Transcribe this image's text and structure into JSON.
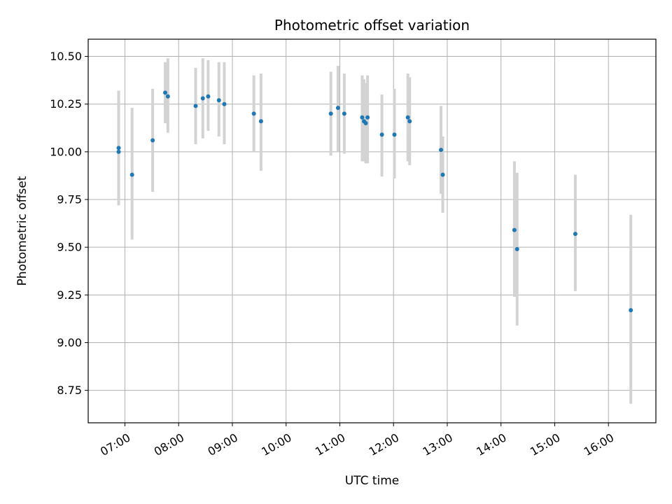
{
  "chart_data": {
    "type": "scatter",
    "title": "Photometric offset variation",
    "xlabel": "UTC time",
    "ylabel": "Photometric offset",
    "x_ticks": [
      "07:00",
      "08:00",
      "09:00",
      "10:00",
      "11:00",
      "12:00",
      "13:00",
      "14:00",
      "15:00",
      "16:00"
    ],
    "y_ticks": [
      "8.75",
      "9.00",
      "9.25",
      "9.50",
      "9.75",
      "10.00",
      "10.25",
      "10.50"
    ],
    "xlim": [
      "06:19",
      "16:53"
    ],
    "ylim": [
      8.58,
      10.59
    ],
    "grid": true,
    "legend": false,
    "colors": {
      "marker": "#1f77b4",
      "errorbar": "#d3d3d3",
      "grid": "#b0b0b0"
    },
    "points": [
      {
        "x": "06:53",
        "y": 10.02,
        "lo": 9.72,
        "hi": 10.32
      },
      {
        "x": "06:53",
        "y": 10.0,
        "lo": 9.72,
        "hi": 10.32
      },
      {
        "x": "07:08",
        "y": 9.88,
        "lo": 9.54,
        "hi": 10.23
      },
      {
        "x": "07:31",
        "y": 10.06,
        "lo": 9.79,
        "hi": 10.33
      },
      {
        "x": "07:45",
        "y": 10.31,
        "lo": 10.15,
        "hi": 10.47
      },
      {
        "x": "07:48",
        "y": 10.29,
        "lo": 10.1,
        "hi": 10.49
      },
      {
        "x": "08:19",
        "y": 10.24,
        "lo": 10.04,
        "hi": 10.44
      },
      {
        "x": "08:27",
        "y": 10.28,
        "lo": 10.07,
        "hi": 10.49
      },
      {
        "x": "08:33",
        "y": 10.29,
        "lo": 10.11,
        "hi": 10.48
      },
      {
        "x": "08:45",
        "y": 10.27,
        "lo": 10.08,
        "hi": 10.47
      },
      {
        "x": "08:51",
        "y": 10.25,
        "lo": 10.04,
        "hi": 10.47
      },
      {
        "x": "09:24",
        "y": 10.2,
        "lo": 10.0,
        "hi": 10.4
      },
      {
        "x": "09:32",
        "y": 10.16,
        "lo": 9.9,
        "hi": 10.41
      },
      {
        "x": "10:50",
        "y": 10.2,
        "lo": 9.98,
        "hi": 10.42
      },
      {
        "x": "10:58",
        "y": 10.23,
        "lo": 10.0,
        "hi": 10.45
      },
      {
        "x": "11:05",
        "y": 10.2,
        "lo": 9.99,
        "hi": 10.41
      },
      {
        "x": "11:25",
        "y": 10.18,
        "lo": 9.95,
        "hi": 10.4
      },
      {
        "x": "11:27",
        "y": 10.16,
        "lo": 9.95,
        "hi": 10.38
      },
      {
        "x": "11:29",
        "y": 10.15,
        "lo": 9.94,
        "hi": 10.36
      },
      {
        "x": "11:31",
        "y": 10.18,
        "lo": 9.94,
        "hi": 10.4
      },
      {
        "x": "11:47",
        "y": 10.09,
        "lo": 9.87,
        "hi": 10.3
      },
      {
        "x": "12:01",
        "y": 10.09,
        "lo": 9.86,
        "hi": 10.33
      },
      {
        "x": "12:16",
        "y": 10.18,
        "lo": 9.95,
        "hi": 10.41
      },
      {
        "x": "12:18",
        "y": 10.16,
        "lo": 9.93,
        "hi": 10.39
      },
      {
        "x": "12:53",
        "y": 10.01,
        "lo": 9.78,
        "hi": 10.24
      },
      {
        "x": "12:55",
        "y": 9.88,
        "lo": 9.68,
        "hi": 10.08
      },
      {
        "x": "14:15",
        "y": 9.59,
        "lo": 9.24,
        "hi": 9.95
      },
      {
        "x": "14:18",
        "y": 9.49,
        "lo": 9.09,
        "hi": 9.89
      },
      {
        "x": "15:23",
        "y": 9.57,
        "lo": 9.27,
        "hi": 9.88
      },
      {
        "x": "16:25",
        "y": 9.17,
        "lo": 8.68,
        "hi": 9.67
      }
    ]
  }
}
